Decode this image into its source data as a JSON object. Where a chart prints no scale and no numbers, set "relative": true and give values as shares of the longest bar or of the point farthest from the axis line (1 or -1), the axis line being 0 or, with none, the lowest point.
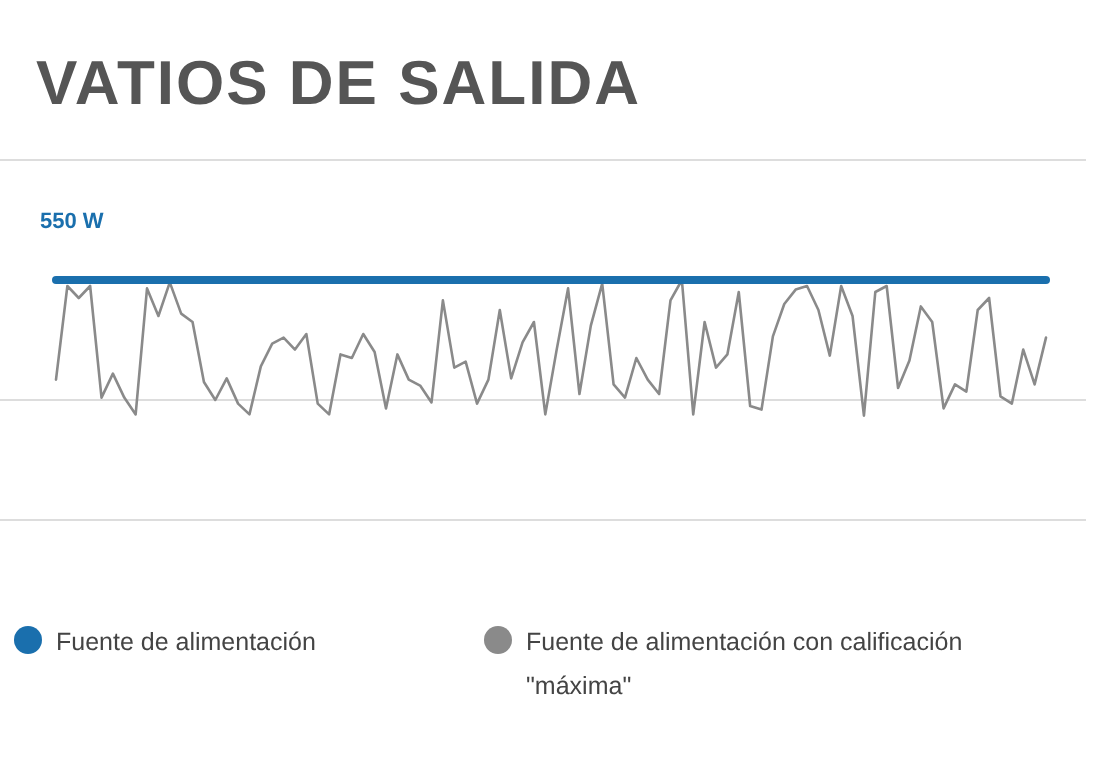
{
  "chart_data": {
    "type": "line",
    "title": "VATIOS DE SALIDA",
    "relative": true,
    "legend": "bottom",
    "marker": "none",
    "line_style": "solid",
    "annotations": [
      "550 W"
    ],
    "categories": [
      null,
      null,
      null,
      null,
      null,
      null,
      null,
      null,
      null,
      null,
      null,
      null,
      null,
      null,
      null,
      null,
      null,
      null,
      null,
      null,
      null,
      null,
      null,
      null,
      null,
      null,
      null,
      null,
      null,
      null,
      null,
      null,
      null,
      null,
      null,
      null,
      null,
      null,
      null,
      null,
      null,
      null,
      null,
      null,
      null,
      null,
      null,
      null,
      null,
      null,
      null,
      null,
      null,
      null,
      null,
      null,
      null,
      null,
      null,
      null,
      null,
      null,
      null,
      null,
      null,
      null,
      null,
      null,
      null,
      null,
      null,
      null,
      null,
      null,
      null,
      null,
      null,
      null,
      null,
      null,
      null,
      null,
      null,
      null,
      null,
      null,
      null,
      null
    ],
    "series": [
      {
        "name": "Fuente de alimentación",
        "color": "#1a6fad",
        "values": [
          1,
          1,
          1,
          1,
          1,
          1,
          1,
          1,
          1,
          1,
          1,
          1,
          1,
          1,
          1,
          1,
          1,
          1,
          1,
          1,
          1,
          1,
          1,
          1,
          1,
          1,
          1,
          1,
          1,
          1,
          1,
          1,
          1,
          1,
          1,
          1,
          1,
          1,
          1,
          1,
          1,
          1,
          1,
          1,
          1,
          1,
          1,
          1,
          1,
          1,
          1,
          1,
          1,
          1,
          1,
          1,
          1,
          1,
          1,
          1,
          1,
          1,
          1,
          1,
          1,
          1,
          1,
          1,
          1,
          1,
          1,
          1,
          1,
          1,
          1,
          1,
          1,
          1,
          1,
          1,
          1,
          1,
          1,
          1,
          1,
          1,
          1,
          1
        ]
      },
      {
        "name": "Fuente de alimentación con calificación \"máxima\"",
        "color": "#8a8a8a",
        "values": [
          0.17,
          0.95,
          0.85,
          0.95,
          0.02,
          0.22,
          0.02,
          -0.12,
          0.93,
          0.7,
          0.98,
          0.72,
          0.65,
          0.15,
          0,
          0.18,
          -0.03,
          -0.12,
          0.28,
          0.47,
          0.52,
          0.42,
          0.55,
          -0.03,
          -0.12,
          0.38,
          0.35,
          0.55,
          0.4,
          -0.07,
          0.38,
          0.17,
          0.12,
          -0.02,
          0.83,
          0.27,
          0.32,
          -0.03,
          0.17,
          0.75,
          0.18,
          0.48,
          0.65,
          -0.12,
          0.42,
          0.93,
          0.05,
          0.62,
          0.97,
          0.13,
          0.02,
          0.35,
          0.17,
          0.05,
          0.83,
          1,
          -0.12,
          0.65,
          0.27,
          0.38,
          0.9,
          -0.05,
          -0.08,
          0.53,
          0.8,
          0.92,
          0.95,
          0.75,
          0.37,
          0.95,
          0.7,
          -0.13,
          0.9,
          0.95,
          0.1,
          0.33,
          0.78,
          0.65,
          -0.07,
          0.13,
          0.07,
          0.75,
          0.85,
          0.03,
          -0.03,
          0.42,
          0.13,
          0.52
        ]
      }
    ]
  }
}
